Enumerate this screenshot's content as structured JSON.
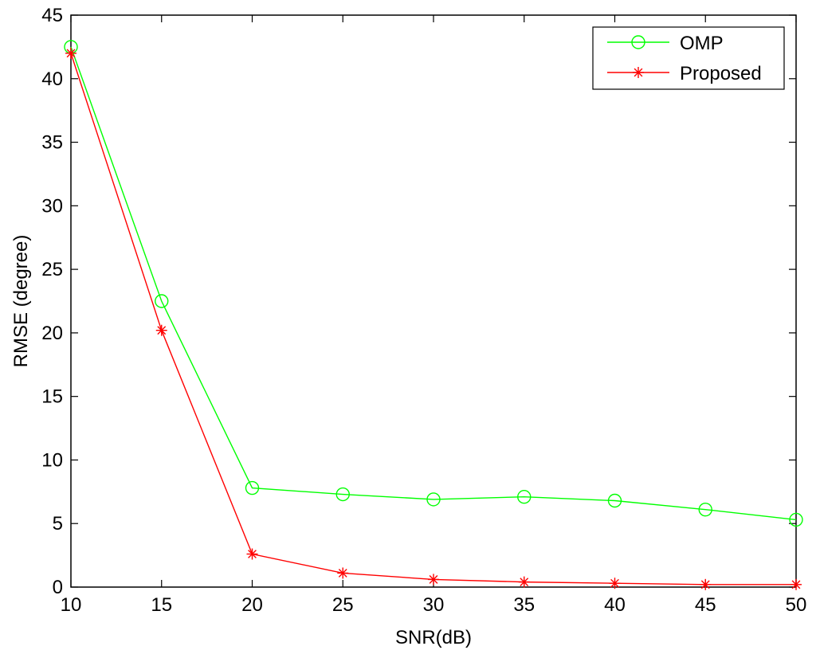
{
  "chart_data": {
    "type": "line",
    "title": "",
    "xlabel": "SNR(dB)",
    "ylabel": "RMSE (degree)",
    "xlim": [
      10,
      50
    ],
    "ylim": [
      0,
      45
    ],
    "x": [
      10,
      15,
      20,
      25,
      30,
      35,
      40,
      45,
      50
    ],
    "x_ticks": [
      "10",
      "15",
      "20",
      "25",
      "30",
      "35",
      "40",
      "45",
      "50"
    ],
    "y_ticks": [
      "0",
      "5",
      "10",
      "15",
      "20",
      "25",
      "30",
      "35",
      "40",
      "45"
    ],
    "grid": false,
    "legend_position": "top-right",
    "series": [
      {
        "name": "OMP",
        "color": "#00ff00",
        "marker": "circle",
        "values": [
          42.5,
          22.5,
          7.8,
          7.3,
          6.9,
          7.1,
          6.8,
          6.1,
          5.3
        ]
      },
      {
        "name": "Proposed",
        "color": "#ff0000",
        "marker": "asterisk",
        "values": [
          42.0,
          20.2,
          2.6,
          1.1,
          0.6,
          0.4,
          0.3,
          0.2,
          0.2
        ]
      }
    ]
  }
}
